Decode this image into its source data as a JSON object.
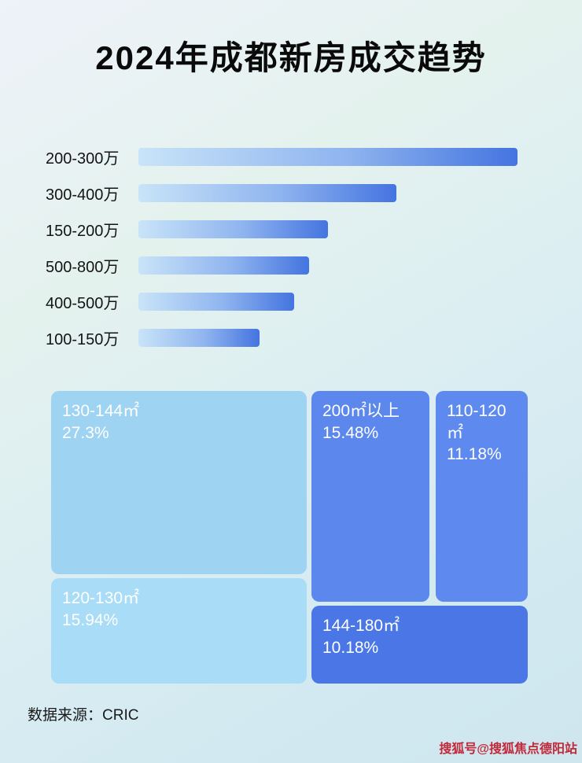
{
  "page": {
    "title": "2024年成都新房成交趋势",
    "source": "数据来源：CRIC",
    "watermark": "搜狐号@搜狐焦点德阳站"
  },
  "chart_data": [
    {
      "type": "bar",
      "orientation": "horizontal",
      "categories": [
        "200-300万",
        "300-400万",
        "150-200万",
        "500-800万",
        "400-500万",
        "100-150万"
      ],
      "values": [
        100,
        68,
        50,
        45,
        41,
        32
      ],
      "value_note": "no numeric data labels shown; values are relative bar lengths with longest bar = 100",
      "bar_color_start": "#c9e4f8",
      "bar_color_end": "#4474e0",
      "grid": false,
      "legend": false
    },
    {
      "type": "treemap",
      "items": [
        {
          "label": "130-144㎡",
          "value": 27.3,
          "display": "27.3%",
          "color": "#9ed3f2"
        },
        {
          "label": "120-130㎡",
          "value": 15.94,
          "display": "15.94%",
          "color": "#a9dcf6"
        },
        {
          "label": "200㎡以上",
          "value": 15.48,
          "display": "15.48%",
          "color": "#5c87ec"
        },
        {
          "label": "110-120㎡",
          "value": 11.18,
          "display": "11.18%",
          "color": "#5e89ee"
        },
        {
          "label": "144-180㎡",
          "value": 10.18,
          "display": "10.18%",
          "color": "#4b77e6"
        }
      ]
    }
  ]
}
